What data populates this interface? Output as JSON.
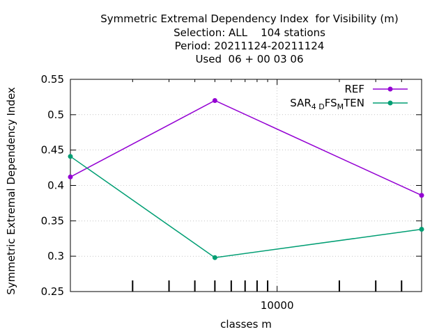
{
  "chart_data": {
    "type": "line",
    "title_lines": [
      "Symmetric Extremal Dependency Index  for Visibility (m)",
      "Selection: ALL    104 stations",
      "Period: 20211124-20211124",
      "Used  06 + 00 03 06"
    ],
    "xlabel": "classes m",
    "ylabel": "Symmetric Extremal Dependency Index",
    "x_scale": "log",
    "xlim": [
      1000,
      50000
    ],
    "ylim": [
      0.25,
      0.55
    ],
    "y_ticks": [
      "0.25",
      "0.3",
      "0.35",
      "0.4",
      "0.45",
      "0.5",
      "0.55"
    ],
    "x_tick_labels": [
      {
        "value": 10000,
        "label": "10000"
      }
    ],
    "grid": true,
    "legend_position": "top-right",
    "series": [
      {
        "name": "REF",
        "color": "#9400d3",
        "x": [
          1000,
          5000,
          50000
        ],
        "y": [
          0.412,
          0.52,
          0.386
        ]
      },
      {
        "name": "SAR_4DFS_MTEN",
        "legend_parts": [
          "SAR",
          "4 D",
          "FS",
          "M",
          "TEN"
        ],
        "color": "#009e73",
        "x": [
          1000,
          5000,
          50000
        ],
        "y": [
          0.441,
          0.298,
          0.338
        ]
      }
    ]
  }
}
